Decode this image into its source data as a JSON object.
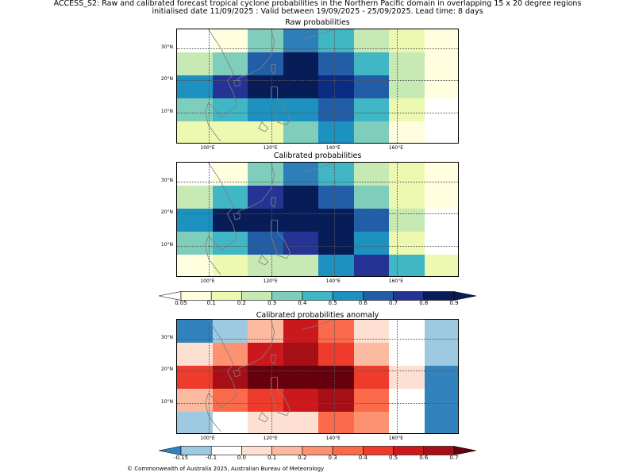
{
  "header": {
    "line1": "ACCESS_S2: Raw and calibrated forecast tropical cyclone probabilities in the Northern Pacific domain in overlapping 15 x 20 degree regions",
    "line2": "initialised date 11/09/2025 :  Valid between 19/09/2025 - 25/09/2025. Lead time: 8 days"
  },
  "panels": [
    {
      "title": "Raw probabilities",
      "grid": [
        [
          "#ffffff",
          "#ffffe0",
          "#7fcdbb",
          "#2c7fb8",
          "#41b6c4",
          "#c7e9b4",
          "#edf8b1",
          "#ffffe0"
        ],
        [
          "#c7e9b4",
          "#7fcdbb",
          "#225ea8",
          "#081d58",
          "#225ea8",
          "#41b6c4",
          "#c7e9b4",
          "#ffffe0"
        ],
        [
          "#1d91c0",
          "#253494",
          "#081d58",
          "#081d58",
          "#0c2c84",
          "#225ea8",
          "#c7e9b4",
          "#ffffe0"
        ],
        [
          "#7fcdbb",
          "#41b6c4",
          "#1d91c0",
          "#1d91c0",
          "#225ea8",
          "#41b6c4",
          "#edf8b1",
          "#ffffff"
        ],
        [
          "#edf8b1",
          "#edf8b1",
          "#edf8b1",
          "#7fcdbb",
          "#1d91c0",
          "#7fcdbb",
          "#ffffe0",
          "#ffffff"
        ]
      ]
    },
    {
      "title": "Calibrated probabilities",
      "grid": [
        [
          "#ffffff",
          "#ffffe0",
          "#7fcdbb",
          "#2c7fb8",
          "#41b6c4",
          "#c7e9b4",
          "#edf8b1",
          "#ffffe0"
        ],
        [
          "#c7e9b4",
          "#41b6c4",
          "#253494",
          "#081d58",
          "#225ea8",
          "#7fcdbb",
          "#edf8b1",
          "#ffffe0"
        ],
        [
          "#1d91c0",
          "#081d58",
          "#081d58",
          "#081d58",
          "#081d58",
          "#225ea8",
          "#c7e9b4",
          "#ffffff"
        ],
        [
          "#7fcdbb",
          "#41b6c4",
          "#225ea8",
          "#253494",
          "#081d58",
          "#1d91c0",
          "#edf8b1",
          "#ffffff"
        ],
        [
          "#ffffe0",
          "#edf8b1",
          "#c7e9b4",
          "#c7e9b4",
          "#1d91c0",
          "#253494",
          "#41b6c4",
          "#edf8b1"
        ]
      ]
    },
    {
      "title": "Calibrated probabilities anomaly",
      "grid": [
        [
          "#3182bd",
          "#9ecae1",
          "#fcbba1",
          "#cb181d",
          "#fb6a4a",
          "#fee0d2",
          "#ffffff",
          "#9ecae1"
        ],
        [
          "#fee0d2",
          "#fc9272",
          "#cb181d",
          "#a50f15",
          "#ef3b2c",
          "#fcbba1",
          "#ffffff",
          "#9ecae1"
        ],
        [
          "#ef3b2c",
          "#a50f15",
          "#67000d",
          "#67000d",
          "#67000d",
          "#ef3b2c",
          "#fee0d2",
          "#3182bd"
        ],
        [
          "#fcbba1",
          "#fb6a4a",
          "#ef3b2c",
          "#cb181d",
          "#a50f15",
          "#fb6a4a",
          "#ffffff",
          "#3182bd"
        ],
        [
          "#9ecae1",
          "#ffffff",
          "#fee0d2",
          "#fee0d2",
          "#fb6a4a",
          "#fc9272",
          "#ffffff",
          "#3182bd"
        ]
      ]
    }
  ],
  "axes": {
    "xticks": [
      "100°E",
      "120°E",
      "140°E",
      "160°E"
    ],
    "yticks": [
      "30°N",
      "20°N",
      "10°N"
    ]
  },
  "colorbar_prob": {
    "labels": [
      "0.05",
      "0.1",
      "0.2",
      "0.3",
      "0.4",
      "0.5",
      "0.6",
      "0.7",
      "0.8",
      "0.9"
    ],
    "colors": [
      "#ffffe0",
      "#edf8b1",
      "#c7e9b4",
      "#7fcdbb",
      "#41b6c4",
      "#1d91c0",
      "#225ea8",
      "#253494",
      "#081d58"
    ],
    "under": "#ffffff",
    "over": "#081d58"
  },
  "colorbar_anom": {
    "labels": [
      "-0.15",
      "-0.1",
      "0.0",
      "0.1",
      "0.2",
      "0.3",
      "0.4",
      "0.5",
      "0.6",
      "0.7"
    ],
    "colors": [
      "#9ecae1",
      "#ffffff",
      "#fee0d2",
      "#fcbba1",
      "#fc9272",
      "#fb6a4a",
      "#ef3b2c",
      "#cb181d",
      "#a50f15"
    ],
    "under": "#3182bd",
    "over": "#67000d"
  },
  "footer": "© Commonwealth of Australia 2025, Australian Bureau of Meteorology"
}
